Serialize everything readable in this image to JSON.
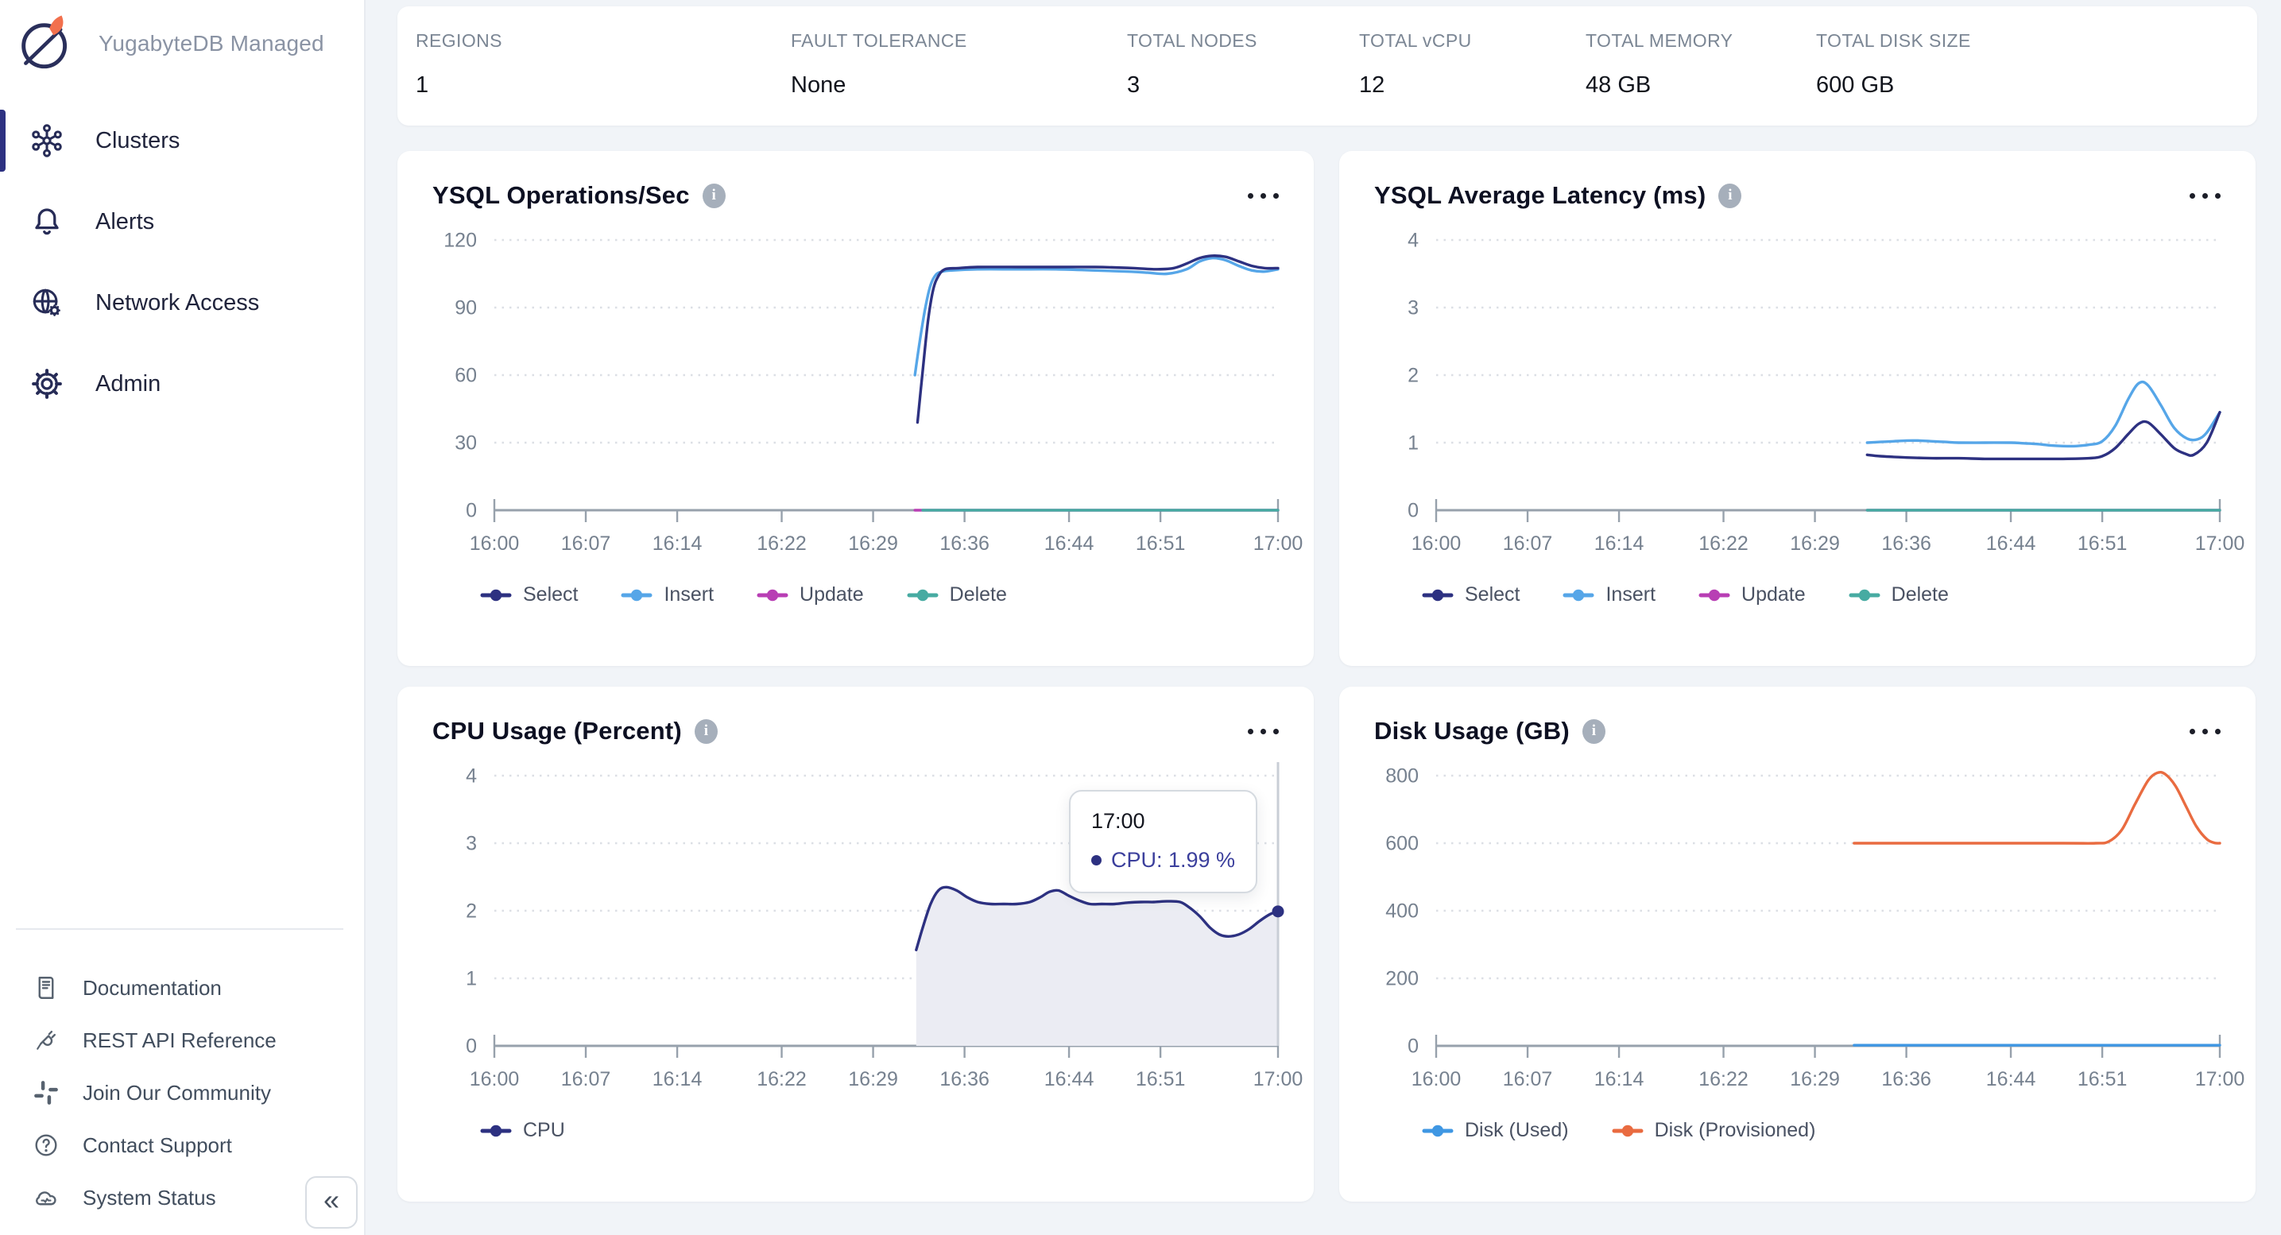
{
  "sidebar": {
    "brand": "YugabyteDB Managed",
    "items": [
      {
        "label": "Clusters",
        "icon": "clusters-icon",
        "active": true
      },
      {
        "label": "Alerts",
        "icon": "bell-icon",
        "active": false
      },
      {
        "label": "Network Access",
        "icon": "globe-gear-icon",
        "active": false
      },
      {
        "label": "Admin",
        "icon": "gear-icon",
        "active": false
      }
    ],
    "footer_items": [
      {
        "label": "Documentation",
        "icon": "book-icon"
      },
      {
        "label": "REST API Reference",
        "icon": "plug-icon"
      },
      {
        "label": "Join Our Community",
        "icon": "slack-icon"
      },
      {
        "label": "Contact Support",
        "icon": "question-icon"
      },
      {
        "label": "System Status",
        "icon": "cloud-status-icon"
      }
    ],
    "collapse_label": "«"
  },
  "stats": [
    {
      "label": "REGIONS",
      "value": "1"
    },
    {
      "label": "FAULT TOLERANCE",
      "value": "None"
    },
    {
      "label": "TOTAL NODES",
      "value": "3"
    },
    {
      "label": "TOTAL vCPU",
      "value": "12"
    },
    {
      "label": "TOTAL MEMORY",
      "value": "48 GB"
    },
    {
      "label": "TOTAL DISK SIZE",
      "value": "600 GB"
    }
  ],
  "colors": {
    "select": "#2d3181",
    "insert": "#56a6e8",
    "update": "#b83eb4",
    "delete": "#47aba2",
    "cpu": "#2d3181",
    "cpu_fill": "#ebecf3",
    "disk_used": "#3f97e3",
    "disk_provisioned": "#e96b40",
    "accent": "#2d3181"
  },
  "chart_data": [
    {
      "type": "line",
      "title": "YSQL Operations/Sec",
      "xlabel": "",
      "ylabel": "",
      "xlim": [
        0,
        60
      ],
      "ymax": 126,
      "yticks": [
        0,
        30,
        60,
        90,
        120
      ],
      "xticks": [
        {
          "m": 0,
          "label": "16:00"
        },
        {
          "m": 7,
          "label": "16:07"
        },
        {
          "m": 14,
          "label": "16:14"
        },
        {
          "m": 22,
          "label": "16:22"
        },
        {
          "m": 29,
          "label": "16:29"
        },
        {
          "m": 36,
          "label": "16:36"
        },
        {
          "m": 44,
          "label": "16:44"
        },
        {
          "m": 51,
          "label": "16:51"
        },
        {
          "m": 60,
          "label": "17:00"
        }
      ],
      "series": [
        {
          "name": "Update",
          "color": "#b83eb4",
          "points": [
            [
              32.2,
              0
            ],
            [
              60,
              0
            ]
          ]
        },
        {
          "name": "Insert",
          "color": "#56a6e8",
          "points": [
            [
              32.2,
              60
            ],
            [
              32.6,
              76
            ],
            [
              33,
              90
            ],
            [
              33.4,
              100
            ],
            [
              33.8,
              104.5
            ],
            [
              34.3,
              106
            ],
            [
              35,
              106.5
            ],
            [
              37,
              107
            ],
            [
              40,
              107
            ],
            [
              43,
              107
            ],
            [
              46,
              106.5
            ],
            [
              48.5,
              106
            ],
            [
              50,
              105.5
            ],
            [
              51.5,
              105
            ],
            [
              53,
              107
            ],
            [
              54,
              110.5
            ],
            [
              55,
              112
            ],
            [
              56,
              111
            ],
            [
              57,
              108.5
            ],
            [
              58,
              106.5
            ],
            [
              59,
              106
            ],
            [
              60,
              107
            ]
          ]
        },
        {
          "name": "Select",
          "color": "#2d3181",
          "points": [
            [
              32.4,
              39
            ],
            [
              32.8,
              62
            ],
            [
              33.2,
              84
            ],
            [
              33.6,
              98
            ],
            [
              34,
              104
            ],
            [
              34.5,
              107
            ],
            [
              35.5,
              107.5
            ],
            [
              37,
              108
            ],
            [
              40,
              108
            ],
            [
              43,
              108
            ],
            [
              46,
              108
            ],
            [
              49,
              107.5
            ],
            [
              50.5,
              107
            ],
            [
              52,
              107.5
            ],
            [
              53,
              109.5
            ],
            [
              54,
              112
            ],
            [
              55,
              113
            ],
            [
              56,
              112.5
            ],
            [
              57,
              110.5
            ],
            [
              58,
              108.5
            ],
            [
              59,
              107.5
            ],
            [
              60,
              107.5
            ]
          ]
        },
        {
          "name": "Delete",
          "color": "#47aba2",
          "points": [
            [
              32.8,
              0
            ],
            [
              60,
              0
            ]
          ]
        }
      ],
      "legend": [
        {
          "label": "Select",
          "color": "#2d3181"
        },
        {
          "label": "Insert",
          "color": "#56a6e8"
        },
        {
          "label": "Update",
          "color": "#b83eb4"
        },
        {
          "label": "Delete",
          "color": "#47aba2"
        }
      ]
    },
    {
      "type": "line",
      "title": "YSQL Average Latency (ms)",
      "xlabel": "",
      "ylabel": "",
      "xlim": [
        0,
        60
      ],
      "ymax": 4.2,
      "yticks": [
        0,
        1,
        2,
        3,
        4
      ],
      "xticks": [
        {
          "m": 0,
          "label": "16:00"
        },
        {
          "m": 7,
          "label": "16:07"
        },
        {
          "m": 14,
          "label": "16:14"
        },
        {
          "m": 22,
          "label": "16:22"
        },
        {
          "m": 29,
          "label": "16:29"
        },
        {
          "m": 36,
          "label": "16:36"
        },
        {
          "m": 44,
          "label": "16:44"
        },
        {
          "m": 51,
          "label": "16:51"
        },
        {
          "m": 60,
          "label": "17:00"
        }
      ],
      "series": [
        {
          "name": "Update",
          "color": "#b83eb4",
          "points": [
            [
              33,
              0
            ],
            [
              60,
              0
            ]
          ]
        },
        {
          "name": "Insert",
          "color": "#56a6e8",
          "points": [
            [
              33,
              1.0
            ],
            [
              34,
              1.01
            ],
            [
              35,
              1.02
            ],
            [
              36,
              1.03
            ],
            [
              37,
              1.03
            ],
            [
              38,
              1.02
            ],
            [
              39,
              1.01
            ],
            [
              40,
              1.0
            ],
            [
              42,
              1.0
            ],
            [
              44,
              1.0
            ],
            [
              45,
              0.99
            ],
            [
              46,
              0.98
            ],
            [
              47,
              0.96
            ],
            [
              48,
              0.95
            ],
            [
              49,
              0.95
            ],
            [
              50,
              0.97
            ],
            [
              51,
              1.02
            ],
            [
              52,
              1.25
            ],
            [
              53,
              1.65
            ],
            [
              53.8,
              1.88
            ],
            [
              54.5,
              1.85
            ],
            [
              55.5,
              1.55
            ],
            [
              56.5,
              1.22
            ],
            [
              57.5,
              1.06
            ],
            [
              58.3,
              1.05
            ],
            [
              59,
              1.15
            ],
            [
              60,
              1.45
            ]
          ]
        },
        {
          "name": "Select",
          "color": "#2d3181",
          "points": [
            [
              33,
              0.82
            ],
            [
              34,
              0.8
            ],
            [
              35,
              0.79
            ],
            [
              36,
              0.78
            ],
            [
              38,
              0.77
            ],
            [
              40,
              0.77
            ],
            [
              42,
              0.76
            ],
            [
              44,
              0.76
            ],
            [
              46,
              0.76
            ],
            [
              48,
              0.76
            ],
            [
              50,
              0.77
            ],
            [
              51,
              0.8
            ],
            [
              52,
              0.92
            ],
            [
              53,
              1.13
            ],
            [
              53.8,
              1.28
            ],
            [
              54.5,
              1.3
            ],
            [
              55.5,
              1.12
            ],
            [
              56.5,
              0.92
            ],
            [
              57.3,
              0.84
            ],
            [
              58,
              0.82
            ],
            [
              59,
              1.0
            ],
            [
              60,
              1.45
            ]
          ]
        },
        {
          "name": "Delete",
          "color": "#47aba2",
          "points": [
            [
              33,
              0
            ],
            [
              60,
              0
            ]
          ]
        }
      ],
      "legend": [
        {
          "label": "Select",
          "color": "#2d3181"
        },
        {
          "label": "Insert",
          "color": "#56a6e8"
        },
        {
          "label": "Update",
          "color": "#b83eb4"
        },
        {
          "label": "Delete",
          "color": "#47aba2"
        }
      ]
    },
    {
      "type": "area",
      "title": "CPU Usage (Percent)",
      "xlabel": "",
      "ylabel": "",
      "xlim": [
        0,
        60
      ],
      "ymax": 4.2,
      "yticks": [
        0,
        1,
        2,
        3,
        4
      ],
      "xticks": [
        {
          "m": 0,
          "label": "16:00"
        },
        {
          "m": 7,
          "label": "16:07"
        },
        {
          "m": 14,
          "label": "16:14"
        },
        {
          "m": 22,
          "label": "16:22"
        },
        {
          "m": 29,
          "label": "16:29"
        },
        {
          "m": 36,
          "label": "16:36"
        },
        {
          "m": 44,
          "label": "16:44"
        },
        {
          "m": 51,
          "label": "16:51"
        },
        {
          "m": 60,
          "label": "17:00"
        }
      ],
      "series": [
        {
          "name": "CPU",
          "color": "#2d3181",
          "fill": "#ebecf3",
          "points": [
            [
              32.3,
              1.42
            ],
            [
              32.8,
              1.75
            ],
            [
              33.4,
              2.1
            ],
            [
              34,
              2.3
            ],
            [
              34.6,
              2.35
            ],
            [
              35.4,
              2.3
            ],
            [
              36.2,
              2.2
            ],
            [
              37,
              2.13
            ],
            [
              38,
              2.1
            ],
            [
              39,
              2.1
            ],
            [
              40,
              2.1
            ],
            [
              41,
              2.13
            ],
            [
              41.8,
              2.2
            ],
            [
              42.5,
              2.28
            ],
            [
              43.2,
              2.3
            ],
            [
              44,
              2.22
            ],
            [
              44.8,
              2.15
            ],
            [
              45.6,
              2.1
            ],
            [
              46.5,
              2.1
            ],
            [
              47.5,
              2.1
            ],
            [
              48.5,
              2.12
            ],
            [
              49.5,
              2.13
            ],
            [
              50.5,
              2.13
            ],
            [
              51.5,
              2.14
            ],
            [
              52.5,
              2.13
            ],
            [
              53.2,
              2.05
            ],
            [
              54,
              1.92
            ],
            [
              54.8,
              1.75
            ],
            [
              55.5,
              1.65
            ],
            [
              56.2,
              1.62
            ],
            [
              57,
              1.65
            ],
            [
              57.8,
              1.73
            ],
            [
              58.6,
              1.85
            ],
            [
              59.4,
              1.95
            ],
            [
              60,
              1.99
            ]
          ]
        }
      ],
      "legend": [
        {
          "label": "CPU",
          "color": "#2d3181"
        }
      ],
      "cursor": {
        "x": 60,
        "value": 1.99,
        "dot_color": "#2d3181"
      },
      "tooltip": {
        "time": "17:00",
        "text": "CPU: 1.99 %"
      }
    },
    {
      "type": "line",
      "title": "Disk Usage (GB)",
      "xlabel": "",
      "ylabel": "",
      "xlim": [
        0,
        60
      ],
      "ymax": 840,
      "yticks": [
        0,
        200,
        400,
        600,
        800
      ],
      "xticks": [
        {
          "m": 0,
          "label": "16:00"
        },
        {
          "m": 7,
          "label": "16:07"
        },
        {
          "m": 14,
          "label": "16:14"
        },
        {
          "m": 22,
          "label": "16:22"
        },
        {
          "m": 29,
          "label": "16:29"
        },
        {
          "m": 36,
          "label": "16:36"
        },
        {
          "m": 44,
          "label": "16:44"
        },
        {
          "m": 51,
          "label": "16:51"
        },
        {
          "m": 60,
          "label": "17:00"
        }
      ],
      "series": [
        {
          "name": "Disk (Used)",
          "color": "#3f97e3",
          "points": [
            [
              32,
              2
            ],
            [
              60,
              2
            ]
          ]
        },
        {
          "name": "Disk (Provisioned)",
          "color": "#e96b40",
          "points": [
            [
              32,
              600
            ],
            [
              40,
              600
            ],
            [
              48,
              600
            ],
            [
              50.5,
              600
            ],
            [
              51.5,
              605
            ],
            [
              52.5,
              640
            ],
            [
              53.5,
              715
            ],
            [
              54.5,
              785
            ],
            [
              55.2,
              808
            ],
            [
              55.8,
              805
            ],
            [
              56.6,
              770
            ],
            [
              57.4,
              710
            ],
            [
              58.2,
              650
            ],
            [
              59,
              612
            ],
            [
              59.6,
              601
            ],
            [
              60,
              600
            ]
          ]
        }
      ],
      "legend": [
        {
          "label": "Disk (Used)",
          "color": "#3f97e3"
        },
        {
          "label": "Disk (Provisioned)",
          "color": "#e96b40"
        }
      ]
    }
  ]
}
